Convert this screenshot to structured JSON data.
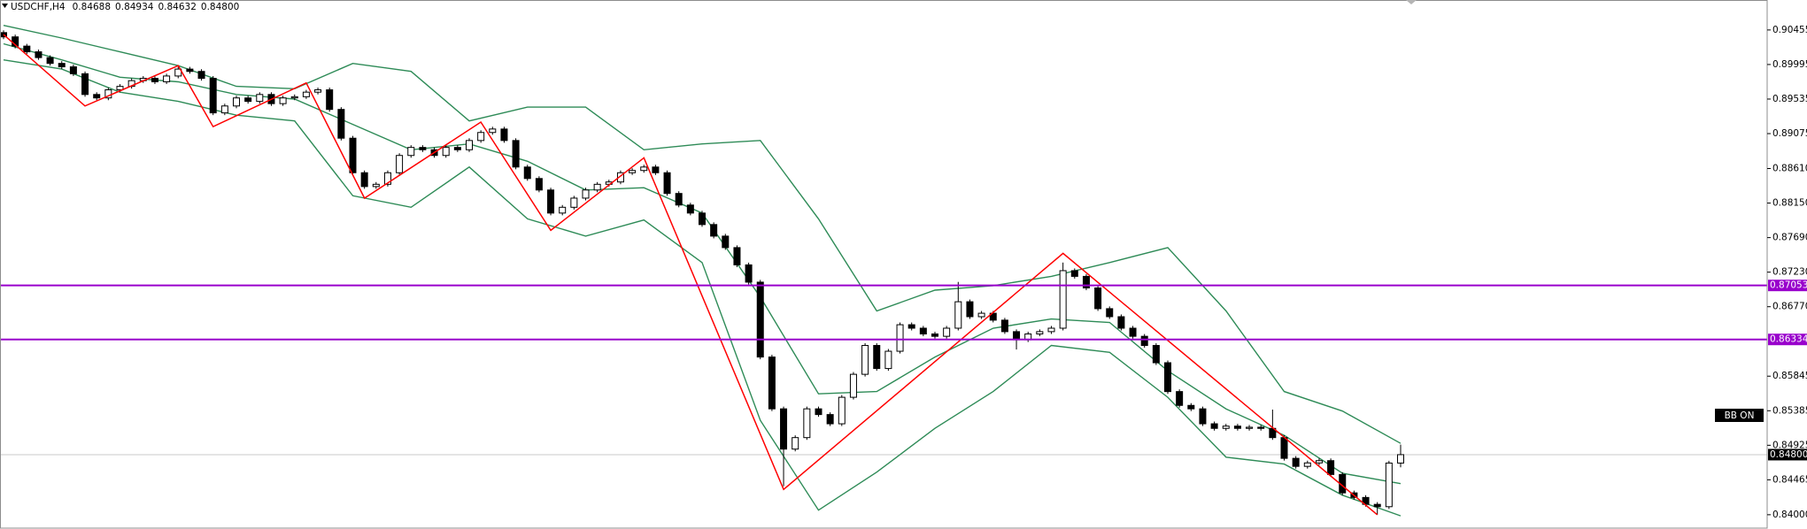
{
  "chart_data": {
    "type": "candlestick",
    "title": "USDCHF,H4",
    "ohlc_labels": [
      "0.84688",
      "0.84934",
      "0.84632",
      "0.84800"
    ],
    "badge": "BB ON",
    "ylim": [
      0.8381,
      0.90854
    ],
    "yticks": [
      0.90455,
      0.89995,
      0.89535,
      0.89075,
      {
        "value": 0.8861,
        "label": "0.88610"
      },
      {
        "value": 0.8815,
        "label": "0.88150"
      },
      {
        "value": 0.8769,
        "label": "0.87690"
      },
      {
        "value": 0.8723,
        "label": "0.87230"
      },
      {
        "value": 0.8677,
        "label": "0.86770"
      },
      0.85845,
      0.85385,
      0.84925,
      0.84465,
      {
        "value": 0.84,
        "label": "0.84000"
      }
    ],
    "levels": [
      {
        "value": 0.87053,
        "color": "#9900cc"
      },
      {
        "value": 0.86334,
        "color": "#9900cc"
      }
    ],
    "last_price": {
      "value": 0.848,
      "label": "0.84800"
    },
    "candle_colors": {
      "up": "#ffffff",
      "down": "#000000",
      "outline": "#000000"
    },
    "candles": {
      "open": [
        0.9042,
        0.90363,
        0.9024,
        0.90164,
        0.90087,
        0.9001,
        0.89964,
        0.89872,
        0.89596,
        0.8955,
        0.89658,
        0.89704,
        0.8978,
        0.89811,
        0.89765,
        0.89842,
        0.89934,
        0.89903,
        0.89811,
        0.89351,
        0.89443,
        0.8955,
        0.89504,
        0.89596,
        0.89474,
        0.8955,
        0.89566,
        0.89627,
        0.89658,
        0.89397,
        0.89014,
        0.88554,
        0.8837,
        0.884,
        0.88554,
        0.88784,
        0.88891,
        0.8886,
        0.88784,
        0.88891,
        0.8886,
        0.88983,
        0.8909,
        0.89136,
        0.88983,
        0.8863,
        0.88477,
        0.88324,
        0.88017,
        0.88094,
        0.88216,
        0.88324,
        0.884,
        0.88431,
        0.88554,
        0.88584,
        0.8863,
        0.88554,
        0.88278,
        0.88124,
        0.88017,
        0.87864,
        0.8771,
        0.87557,
        0.87327,
        0.87097,
        0.861,
        0.8541,
        0.84874,
        0.85027,
        0.8541,
        0.85334,
        0.85211,
        0.85564,
        0.8587,
        0.86254,
        0.85947,
        0.86177,
        0.8653,
        0.86484,
        0.86407,
        0.86376,
        0.86484,
        0.86836,
        0.86637,
        0.86683,
        0.86591,
        0.86438,
        0.8633,
        0.86407,
        0.86438,
        0.86484,
        0.8725,
        0.87174,
        0.8702,
        0.86744,
        0.86637,
        0.86484,
        0.86376,
        0.86254,
        0.86024,
        0.8564,
        0.85456,
        0.8541,
        0.85211,
        0.8515,
        0.8518,
        0.8515,
        0.85165,
        0.8515,
        0.85027,
        0.84751,
        0.84644,
        0.8469,
        0.8472,
        0.84536,
        0.84291,
        0.8423,
        0.84138,
        0.84107,
        0.84688
      ],
      "high": [
        0.9045,
        0.90393,
        0.9027,
        0.90194,
        0.90117,
        0.9004,
        0.89994,
        0.89902,
        0.89626,
        0.89688,
        0.89734,
        0.8981,
        0.89841,
        0.89841,
        0.89872,
        0.89964,
        0.89964,
        0.89933,
        0.89841,
        0.89473,
        0.8958,
        0.8958,
        0.89626,
        0.89626,
        0.8958,
        0.89596,
        0.89657,
        0.89688,
        0.89688,
        0.89427,
        0.89044,
        0.88584,
        0.8843,
        0.88584,
        0.88814,
        0.88921,
        0.88921,
        0.8889,
        0.88921,
        0.88921,
        0.89013,
        0.8912,
        0.89166,
        0.89166,
        0.89013,
        0.8866,
        0.88507,
        0.88354,
        0.88124,
        0.88246,
        0.88354,
        0.8843,
        0.88461,
        0.88584,
        0.88614,
        0.8866,
        0.8866,
        0.88584,
        0.88308,
        0.88154,
        0.88047,
        0.87894,
        0.8774,
        0.87587,
        0.87357,
        0.87127,
        0.8613,
        0.8544,
        0.85057,
        0.8544,
        0.8544,
        0.85364,
        0.85594,
        0.859,
        0.86284,
        0.86284,
        0.86207,
        0.8656,
        0.8656,
        0.86514,
        0.86437,
        0.86514,
        0.871,
        0.86866,
        0.86713,
        0.86713,
        0.86621,
        0.86468,
        0.86437,
        0.86468,
        0.86514,
        0.87358,
        0.8728,
        0.87204,
        0.8705,
        0.86774,
        0.86667,
        0.86514,
        0.86406,
        0.86284,
        0.86054,
        0.8567,
        0.85486,
        0.8544,
        0.85241,
        0.8521,
        0.8521,
        0.85195,
        0.85195,
        0.854,
        0.85057,
        0.84781,
        0.8472,
        0.8475,
        0.8475,
        0.84566,
        0.84321,
        0.8426,
        0.84168,
        0.84718,
        0.84934
      ],
      "low": [
        0.90333,
        0.9021,
        0.90134,
        0.90057,
        0.8998,
        0.89934,
        0.89842,
        0.89566,
        0.8952,
        0.8952,
        0.89628,
        0.89674,
        0.8975,
        0.89735,
        0.89735,
        0.89812,
        0.89873,
        0.89781,
        0.89321,
        0.89321,
        0.89413,
        0.89474,
        0.89474,
        0.89444,
        0.89444,
        0.8952,
        0.89536,
        0.89597,
        0.89367,
        0.88984,
        0.88524,
        0.8834,
        0.8834,
        0.8837,
        0.88524,
        0.88754,
        0.8883,
        0.88754,
        0.88754,
        0.8883,
        0.8883,
        0.88953,
        0.8906,
        0.88953,
        0.886,
        0.88447,
        0.88294,
        0.87987,
        0.87987,
        0.88064,
        0.88186,
        0.88294,
        0.8837,
        0.88401,
        0.88524,
        0.88554,
        0.88524,
        0.88248,
        0.88094,
        0.87987,
        0.87834,
        0.8768,
        0.87527,
        0.87297,
        0.87067,
        0.8607,
        0.8538,
        0.8438,
        0.84844,
        0.84997,
        0.85304,
        0.85181,
        0.85181,
        0.85534,
        0.8584,
        0.85917,
        0.85917,
        0.86147,
        0.86454,
        0.86377,
        0.86346,
        0.86346,
        0.86454,
        0.86607,
        0.86607,
        0.86561,
        0.86408,
        0.862,
        0.863,
        0.86377,
        0.86408,
        0.86454,
        0.87144,
        0.8699,
        0.86714,
        0.86607,
        0.86454,
        0.86346,
        0.86224,
        0.85994,
        0.8561,
        0.85426,
        0.8538,
        0.85181,
        0.8512,
        0.8512,
        0.8512,
        0.8512,
        0.8512,
        0.84997,
        0.84721,
        0.84614,
        0.84614,
        0.8466,
        0.84506,
        0.84261,
        0.842,
        0.84108,
        0.84,
        0.84077,
        0.84632
      ],
      "close": [
        0.90363,
        0.9024,
        0.90164,
        0.90087,
        0.9001,
        0.89964,
        0.89872,
        0.89596,
        0.8955,
        0.89658,
        0.89704,
        0.8978,
        0.89811,
        0.89765,
        0.89842,
        0.89934,
        0.89903,
        0.89811,
        0.89351,
        0.89443,
        0.8955,
        0.89504,
        0.89596,
        0.89474,
        0.8955,
        0.89566,
        0.89627,
        0.89658,
        0.89397,
        0.89014,
        0.88554,
        0.8837,
        0.884,
        0.88554,
        0.88784,
        0.88891,
        0.8886,
        0.88784,
        0.88891,
        0.8886,
        0.88983,
        0.8909,
        0.89136,
        0.88983,
        0.8863,
        0.88477,
        0.88324,
        0.88017,
        0.88094,
        0.88216,
        0.88324,
        0.884,
        0.88431,
        0.88554,
        0.88584,
        0.8863,
        0.88554,
        0.88278,
        0.88124,
        0.88017,
        0.87864,
        0.8771,
        0.87557,
        0.87327,
        0.87097,
        0.861,
        0.8541,
        0.84874,
        0.85027,
        0.8541,
        0.85334,
        0.85211,
        0.85564,
        0.8587,
        0.86254,
        0.85947,
        0.86177,
        0.8653,
        0.86484,
        0.86407,
        0.86376,
        0.86484,
        0.86836,
        0.86637,
        0.86683,
        0.86591,
        0.86438,
        0.8633,
        0.86407,
        0.86438,
        0.86484,
        0.8725,
        0.87174,
        0.8702,
        0.86744,
        0.86637,
        0.86484,
        0.86376,
        0.86254,
        0.86024,
        0.8564,
        0.85456,
        0.8541,
        0.85211,
        0.8515,
        0.8518,
        0.8515,
        0.85165,
        0.8515,
        0.85027,
        0.84751,
        0.84644,
        0.8469,
        0.8472,
        0.84536,
        0.84291,
        0.8423,
        0.84138,
        0.84107,
        0.84688,
        0.848
      ]
    },
    "band_x": [
      0,
      5,
      10,
      15,
      20,
      25,
      30,
      35,
      40,
      45,
      50,
      55,
      60,
      65,
      70,
      75,
      80,
      85,
      90,
      95,
      100,
      105,
      110,
      115,
      120
    ],
    "bands": [
      {
        "color": "#2e8b57",
        "values": [
          0.90516,
          0.90348,
          0.90164,
          0.8998,
          0.89704,
          0.89673,
          0.9001,
          0.89903,
          0.89244,
          0.89428,
          0.89428,
          0.8886,
          0.88937,
          0.88983,
          0.8794,
          0.86714,
          0.8699,
          0.87051,
          0.87174,
          0.87358,
          0.87557,
          0.86714,
          0.8564,
          0.8538,
          0.8495
        ]
      },
      {
        "color": "#2e8b57",
        "values": [
          0.90271,
          0.90056,
          0.89826,
          0.89765,
          0.89596,
          0.89535,
          0.89198,
          0.8886,
          0.88937,
          0.88707,
          0.88324,
          0.88354,
          0.88017,
          0.86898,
          0.8561,
          0.8564,
          0.861,
          0.86484,
          0.86606,
          0.8656,
          0.85916,
          0.8541,
          0.85058,
          0.84552,
          0.84414
        ]
      },
      {
        "color": "#2e8b57",
        "values": [
          0.90056,
          0.89934,
          0.89627,
          0.89504,
          0.8932,
          0.89244,
          0.88247,
          0.88094,
          0.8863,
          0.8794,
          0.8771,
          0.87925,
          0.87358,
          0.85257,
          0.84061,
          0.84567,
          0.8515,
          0.8564,
          0.86254,
          0.86162,
          0.85564,
          0.84766,
          0.84675,
          0.8426,
          0.83985
        ]
      }
    ],
    "zigzag": {
      "color": "#ff0000",
      "x": [
        0,
        7,
        15,
        18,
        26,
        31,
        41,
        47,
        55,
        67,
        91,
        118
      ],
      "values": [
        0.90394,
        0.89443,
        0.8998,
        0.89167,
        0.8975,
        0.88216,
        0.89228,
        0.87787,
        0.88753,
        0.84337,
        0.8748,
        0.84
      ]
    }
  }
}
